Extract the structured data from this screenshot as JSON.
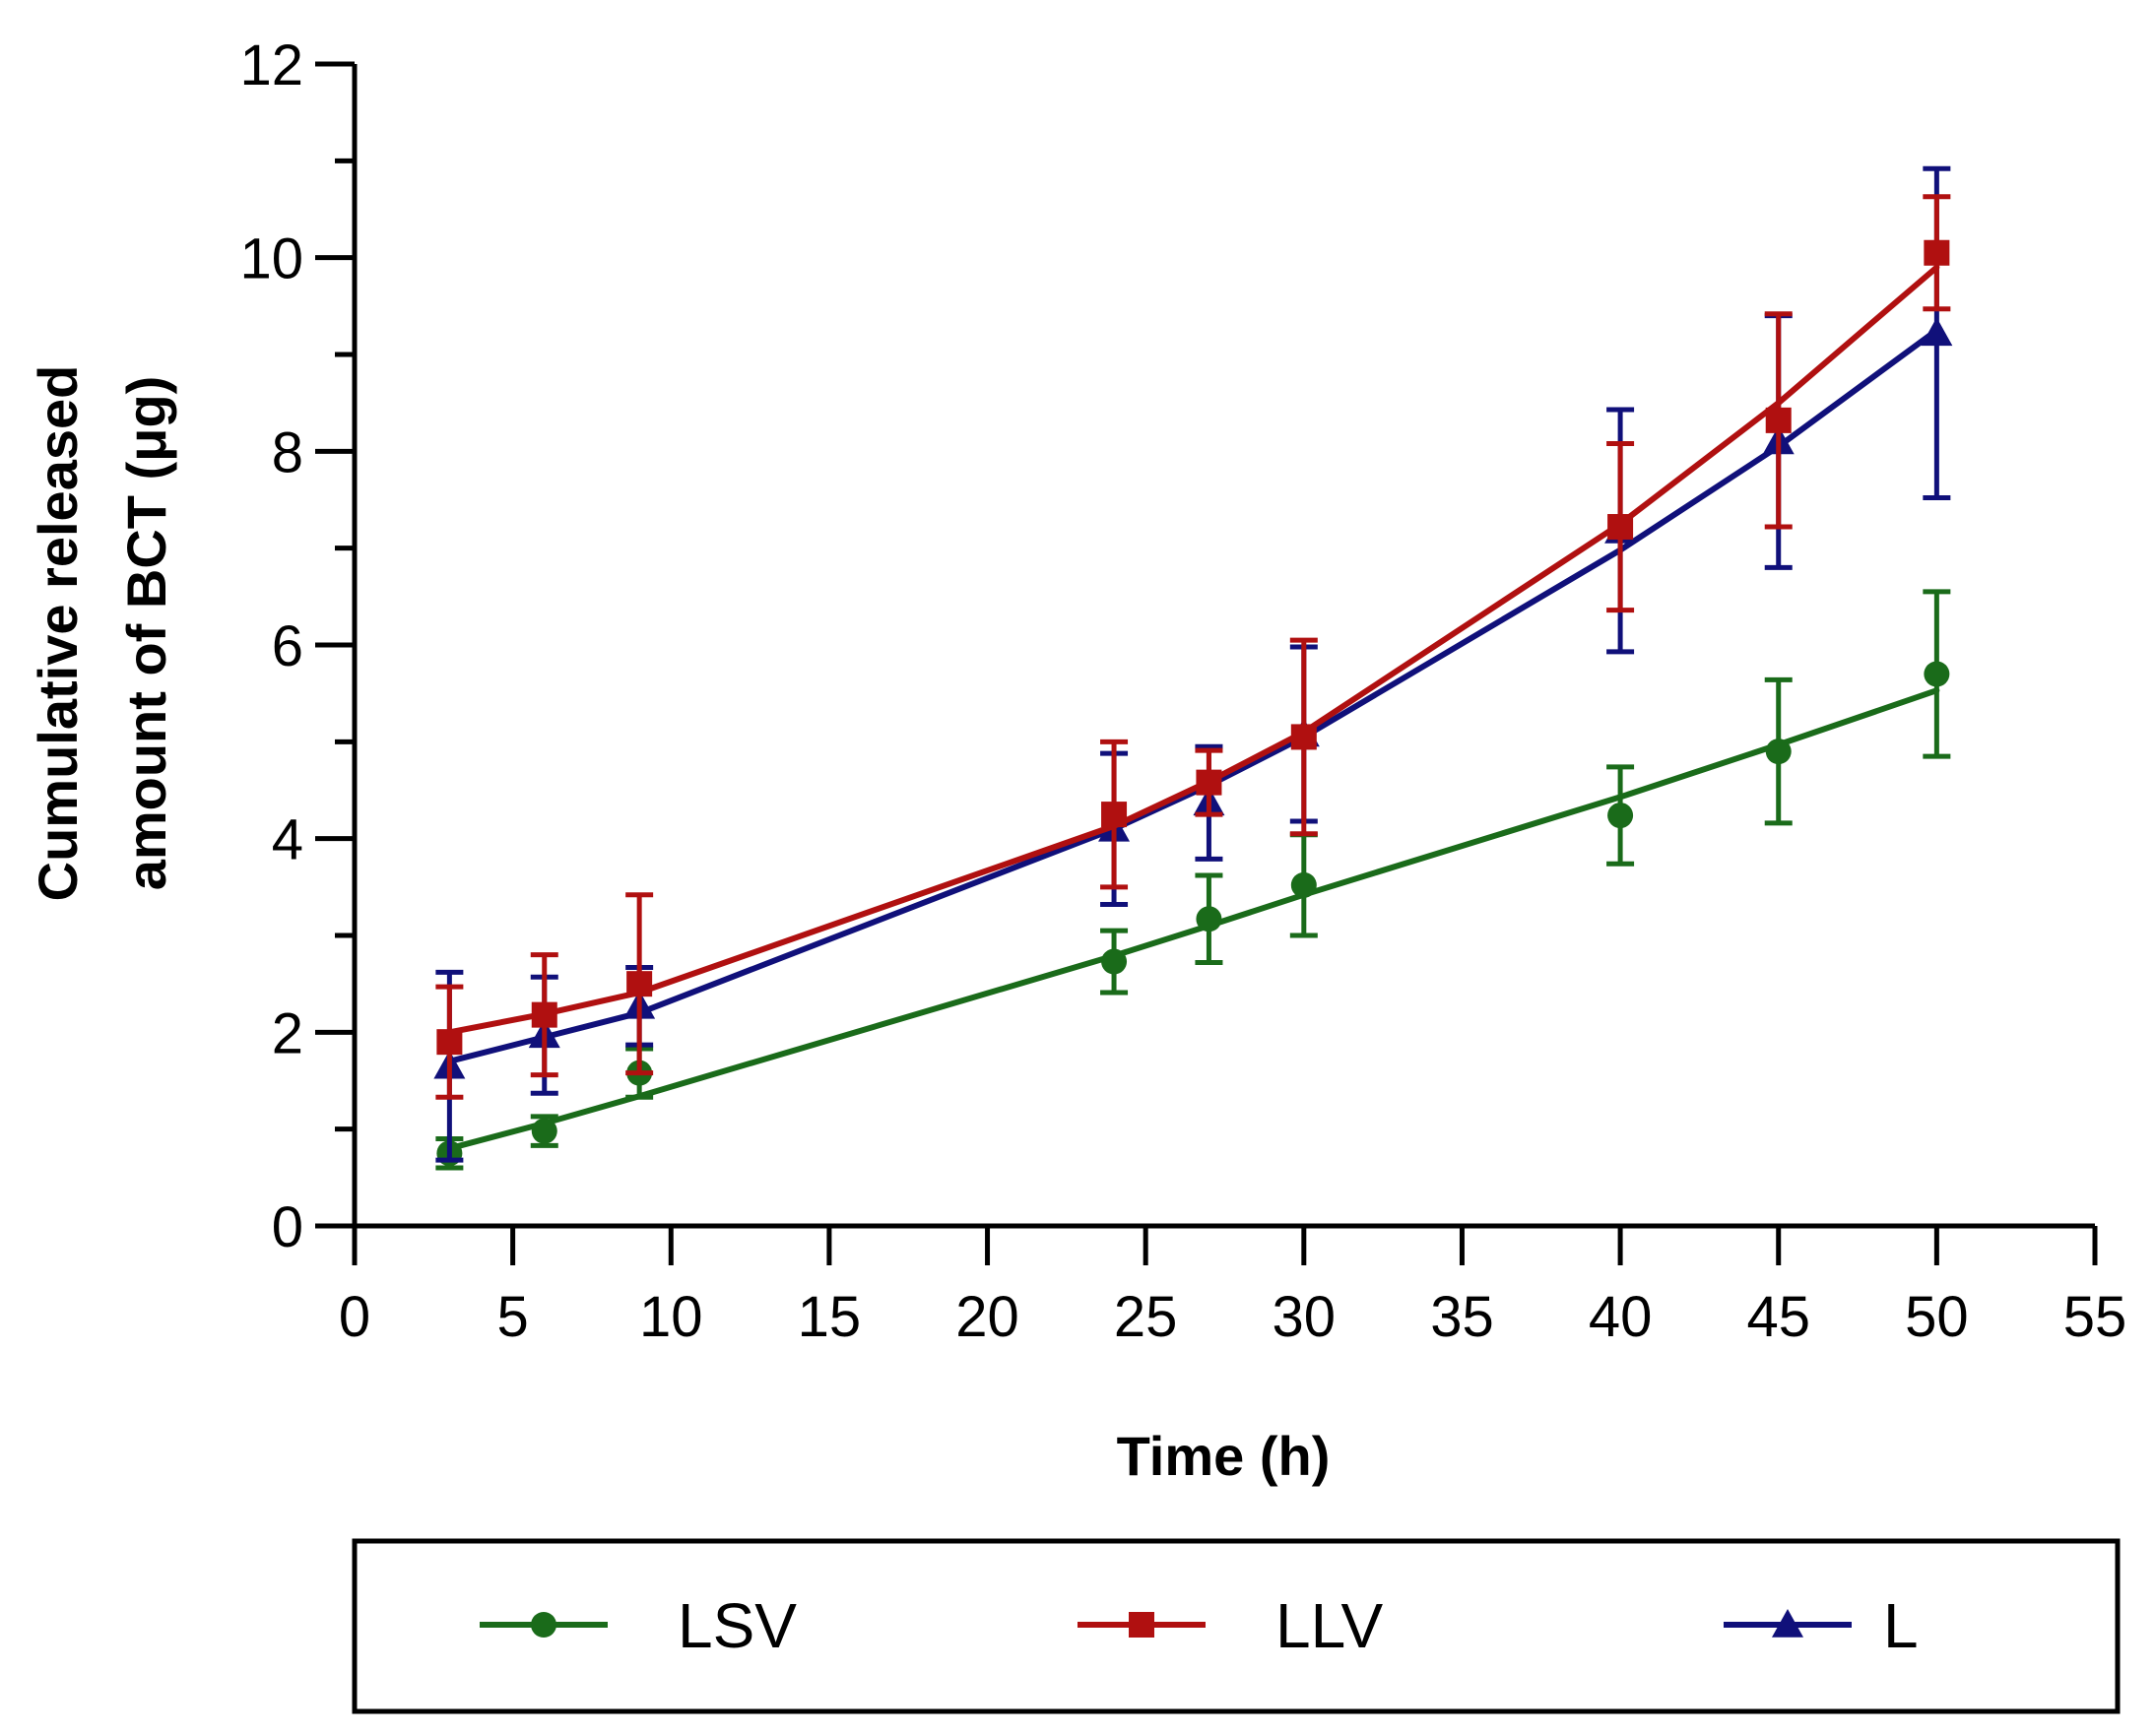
{
  "chart_data": {
    "type": "line",
    "title": "",
    "xlabel": "Time (h)",
    "ylabel_lines": [
      "Cumulative released",
      "amount of BCT (μg)"
    ],
    "xlim": [
      0,
      55
    ],
    "ylim": [
      0,
      12
    ],
    "xticks": [
      "0",
      "5",
      "10",
      "15",
      "20",
      "25",
      "30",
      "35",
      "40",
      "45",
      "50",
      "55"
    ],
    "yticks": [
      "0",
      "2",
      "4",
      "6",
      "8",
      "10",
      "12"
    ],
    "grid": false,
    "legend_position": "bottom",
    "x": [
      3,
      6,
      9,
      24,
      27,
      30,
      40,
      45,
      50
    ],
    "series": [
      {
        "name": "LSV",
        "color": "#1a6b1a",
        "marker": "circle",
        "values": [
          0.75,
          0.98,
          1.58,
          2.73,
          3.17,
          3.52,
          4.24,
          4.9,
          5.7
        ],
        "error": [
          0.15,
          0.15,
          0.25,
          0.32,
          0.45,
          0.52,
          0.5,
          0.74,
          0.85
        ],
        "fit": [
          0.8,
          1.06,
          1.34,
          2.79,
          3.1,
          3.42,
          4.43,
          4.97,
          5.53
        ]
      },
      {
        "name": "LLV",
        "color": "#b01010",
        "marker": "square",
        "values": [
          1.9,
          2.18,
          2.5,
          4.25,
          4.58,
          5.05,
          7.22,
          8.32,
          10.05
        ],
        "error": [
          0.57,
          0.62,
          0.92,
          0.75,
          0.33,
          1.0,
          0.86,
          1.1,
          0.58
        ],
        "fit": [
          2.0,
          2.19,
          2.41,
          4.13,
          4.59,
          5.1,
          7.25,
          8.5,
          9.9
        ]
      },
      {
        "name": "L",
        "color": "#10107a",
        "marker": "triangle",
        "values": [
          1.65,
          1.97,
          2.27,
          4.1,
          4.37,
          5.08,
          7.18,
          8.1,
          9.22
        ],
        "error": [
          0.97,
          0.6,
          0.4,
          0.78,
          0.58,
          0.9,
          1.25,
          1.3,
          1.7
        ],
        "fit": [
          1.7,
          1.95,
          2.2,
          4.1,
          4.55,
          5.05,
          6.98,
          8.05,
          9.25
        ]
      }
    ]
  }
}
